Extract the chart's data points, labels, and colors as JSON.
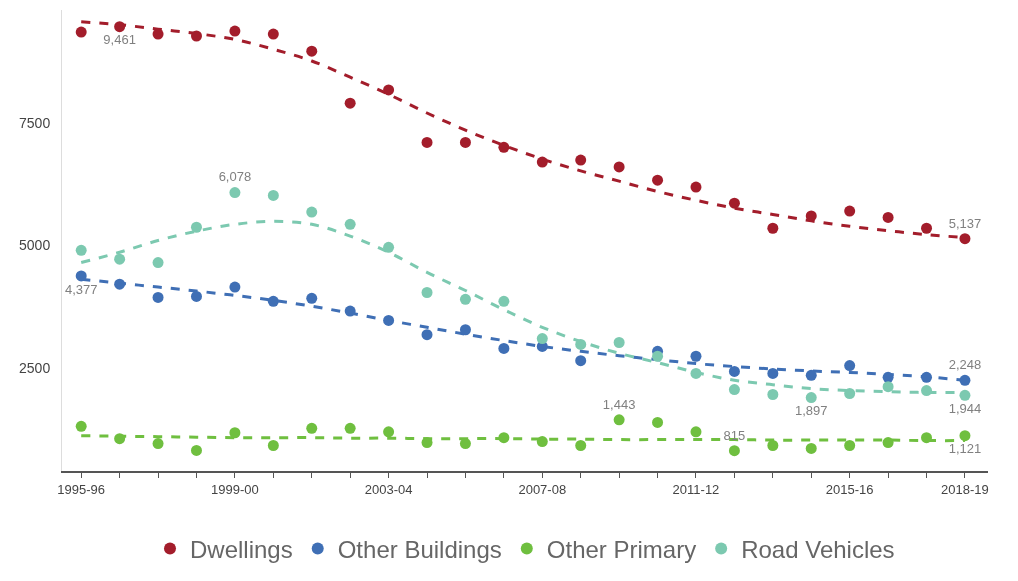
{
  "chart_data": {
    "type": "scatter",
    "categories": [
      "1995-96",
      null,
      null,
      null,
      "1999-00",
      null,
      null,
      null,
      "2003-04",
      null,
      null,
      null,
      "2007-08",
      null,
      null,
      null,
      "2011-12",
      null,
      null,
      null,
      "2015-16",
      null,
      null,
      "2018-19"
    ],
    "ylim": [
      400,
      9800
    ],
    "yticks": [
      2500,
      5000,
      7500
    ],
    "legend": "bottom",
    "marker": "circle",
    "series": [
      {
        "name": "Dwellings",
        "color": "#a31d2b",
        "values": [
          9350,
          9461,
          9310,
          9270,
          9370,
          9310,
          8960,
          7900,
          8170,
          7100,
          7100,
          7000,
          6700,
          6740,
          6600,
          6330,
          6190,
          5860,
          5350,
          5600,
          5700,
          5570,
          5350,
          5137
        ],
        "value_labels": [
          null,
          "9,461",
          null,
          null,
          null,
          null,
          null,
          null,
          null,
          null,
          null,
          null,
          null,
          null,
          null,
          null,
          null,
          null,
          null,
          null,
          null,
          null,
          null,
          "5,137"
        ]
      },
      {
        "name": "Other Buildings",
        "color": "#3f6fb5",
        "values": [
          4377,
          4210,
          3940,
          3960,
          4150,
          3860,
          3920,
          3660,
          3470,
          3180,
          3280,
          2900,
          2940,
          2650,
          null,
          2840,
          2740,
          2430,
          2390,
          2350,
          2550,
          2310,
          2310,
          2248
        ],
        "value_labels": [
          "4,377",
          null,
          null,
          null,
          null,
          null,
          null,
          null,
          null,
          null,
          null,
          null,
          null,
          null,
          null,
          null,
          null,
          null,
          null,
          null,
          null,
          null,
          null,
          "2,248"
        ]
      },
      {
        "name": "Other Primary",
        "color": "#6fbf3f",
        "values": [
          1310,
          1060,
          960,
          820,
          1180,
          920,
          1270,
          1270,
          1200,
          980,
          960,
          1080,
          1000,
          920,
          1443,
          1390,
          1200,
          815,
          920,
          860,
          920,
          980,
          1080,
          1121
        ],
        "value_labels": [
          null,
          null,
          null,
          null,
          null,
          null,
          null,
          null,
          null,
          null,
          null,
          null,
          null,
          null,
          "1,443",
          null,
          null,
          "815",
          null,
          null,
          null,
          null,
          null,
          "1,121"
        ]
      },
      {
        "name": "Road Vehicles",
        "color": "#7cc9b0",
        "values": [
          4900,
          4720,
          4650,
          5370,
          6078,
          6020,
          5680,
          5430,
          4960,
          4040,
          3900,
          3860,
          3100,
          2980,
          3020,
          2740,
          2390,
          2060,
          1960,
          1897,
          1980,
          2120,
          2040,
          1944
        ],
        "value_labels": [
          null,
          null,
          null,
          null,
          "6,078",
          null,
          null,
          null,
          null,
          null,
          null,
          null,
          null,
          null,
          null,
          null,
          null,
          null,
          null,
          "1,897",
          null,
          null,
          null,
          "1,944"
        ]
      },
      {
        "type": "line",
        "line_style": "dashed",
        "marker": "none",
        "color": "#a31d2b",
        "values": [
          9560,
          9500,
          9410,
          9320,
          9200,
          9000,
          8760,
          8430,
          8080,
          7700,
          7350,
          7040,
          6760,
          6520,
          6310,
          6100,
          5920,
          5760,
          5630,
          5500,
          5390,
          5300,
          5220,
          5160
        ]
      },
      {
        "type": "line",
        "line_style": "dashed",
        "marker": "none",
        "color": "#3f6fb5",
        "values": [
          4310,
          4230,
          4150,
          4070,
          3980,
          3880,
          3760,
          3620,
          3470,
          3330,
          3190,
          3060,
          2940,
          2840,
          2750,
          2670,
          2590,
          2530,
          2480,
          2440,
          2410,
          2370,
          2320,
          2250
        ]
      },
      {
        "type": "line",
        "line_style": "dashed",
        "marker": "none",
        "color": "#6fbf3f",
        "values": [
          1120,
          1110,
          1100,
          1090,
          1080,
          1080,
          1080,
          1070,
          1070,
          1060,
          1060,
          1060,
          1050,
          1050,
          1040,
          1040,
          1040,
          1040,
          1030,
          1030,
          1030,
          1030,
          1020,
          1020
        ]
      },
      {
        "type": "line",
        "line_style": "dashed",
        "marker": "none",
        "color": "#7cc9b0",
        "values": [
          4650,
          4860,
          5100,
          5290,
          5430,
          5490,
          5430,
          5190,
          4860,
          4450,
          4080,
          3690,
          3330,
          3040,
          2800,
          2610,
          2410,
          2250,
          2160,
          2080,
          2040,
          2020,
          2000,
          2000
        ]
      }
    ]
  }
}
